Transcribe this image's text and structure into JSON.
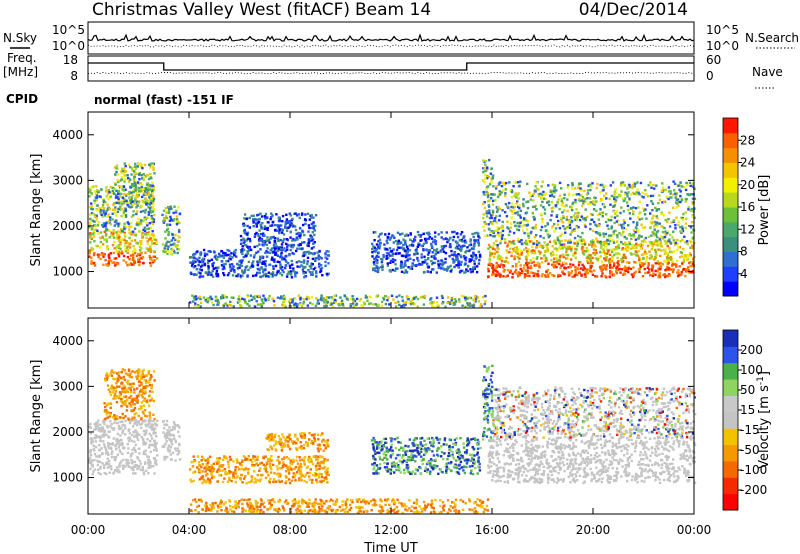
{
  "header": {
    "radar": "Christmas Valley West (fitACF)",
    "beam": "Beam 14",
    "date": "04/Dec/2014"
  },
  "strips": {
    "nsky_label": "N.Sky",
    "nsky_ticks": [
      "10^5",
      "10^0"
    ],
    "nsearch_label": "N.Search",
    "nsearch_ticks": [
      "10^5",
      "10^0"
    ],
    "freq_label": "Freq.",
    "freq_unit": "[MHz]",
    "freq_ticks": [
      "18",
      "8"
    ],
    "nave_label": "Nave",
    "nave_ticks": [
      "60",
      "0"
    ],
    "cpid_label": "CPID",
    "cpid_text": "normal (fast) -151 IF"
  },
  "colors": {
    "power_scale": [
      "#0000ff",
      "#1f3fff",
      "#2e6fcf",
      "#3a8f7f",
      "#4aa86a",
      "#6cc03a",
      "#b8d820",
      "#f0f000",
      "#f4c400",
      "#f79000",
      "#f86000",
      "#ff1800"
    ],
    "velocity_scale": [
      "#1a2fb8",
      "#2d54e8",
      "#4ab04a",
      "#8fd460",
      "#c8c8c8",
      "#c4c4c4",
      "#f2c200",
      "#f49a00",
      "#f56a00",
      "#f52a00",
      "#ff0000"
    ],
    "ground_scatter": "#c4c4c4"
  },
  "chart_data": [
    {
      "type": "heatmap",
      "name": "power",
      "ylabel": "Slant Range [km]",
      "yticks": [
        "4000",
        "3000",
        "2000",
        "1000"
      ],
      "ylim": [
        200,
        4500
      ],
      "xlim": [
        0,
        24
      ],
      "colorbar": {
        "label": "Power [dB]",
        "ticks": [
          "28",
          "24",
          "20",
          "16",
          "12",
          "8",
          "4"
        ],
        "range": [
          0,
          32
        ]
      },
      "features": [
        {
          "t_start": 0.0,
          "t_end": 2.7,
          "range_start": 1150,
          "range_end": 1900,
          "level": "high"
        },
        {
          "t_start": 0.0,
          "t_end": 2.6,
          "range_start": 1900,
          "range_end": 2900,
          "level": "mid"
        },
        {
          "t_start": 1.0,
          "t_end": 2.6,
          "range_start": 2500,
          "range_end": 3400,
          "level": "mid"
        },
        {
          "t_start": 2.9,
          "t_end": 3.6,
          "range_start": 1400,
          "range_end": 2500,
          "level": "mid"
        },
        {
          "t_start": 4.0,
          "t_end": 9.5,
          "range_start": 900,
          "range_end": 1500,
          "level": "low"
        },
        {
          "t_start": 6.0,
          "t_end": 9.0,
          "range_start": 1500,
          "range_end": 2300,
          "level": "low"
        },
        {
          "t_start": 4.0,
          "t_end": 15.8,
          "range_start": 250,
          "range_end": 500,
          "level": "mid"
        },
        {
          "t_start": 11.2,
          "t_end": 15.5,
          "range_start": 1000,
          "range_end": 1900,
          "level": "low"
        },
        {
          "t_start": 15.6,
          "t_end": 16.0,
          "range_start": 1800,
          "range_end": 3500,
          "level": "mid"
        },
        {
          "t_start": 15.8,
          "t_end": 24.0,
          "range_start": 900,
          "range_end": 1700,
          "level": "high"
        },
        {
          "t_start": 16.0,
          "t_end": 24.0,
          "range_start": 1600,
          "range_end": 3000,
          "level": "mid"
        }
      ]
    },
    {
      "type": "heatmap",
      "name": "velocity",
      "ylabel": "Slant Range [km]",
      "yticks": [
        "4000",
        "3000",
        "2000",
        "1000"
      ],
      "ylim": [
        200,
        4500
      ],
      "xlim": [
        0,
        24
      ],
      "xlabel": "Time UT",
      "xticks": [
        "00:00",
        "04:00",
        "08:00",
        "12:00",
        "16:00",
        "20:00",
        "00:00"
      ],
      "colorbar": {
        "label": "Velocity [m s-1]",
        "label_main": "Velocity [m s",
        "label_sup": "-1",
        "label_end": "]",
        "ticks": [
          "200",
          "100",
          "50",
          "15",
          "-15",
          "-50",
          "-100",
          "-200"
        ],
        "range": [
          -250,
          250
        ]
      },
      "features": [
        {
          "t_start": 0.0,
          "t_end": 2.7,
          "range_start": 1100,
          "range_end": 2300,
          "kind": "ground"
        },
        {
          "t_start": 0.6,
          "t_end": 2.6,
          "range_start": 2300,
          "range_end": 3400,
          "kind": "negative"
        },
        {
          "t_start": 2.9,
          "t_end": 3.6,
          "range_start": 1400,
          "range_end": 2300,
          "kind": "ground"
        },
        {
          "t_start": 4.0,
          "t_end": 9.5,
          "range_start": 900,
          "range_end": 1500,
          "kind": "negative"
        },
        {
          "t_start": 7.0,
          "t_end": 9.5,
          "range_start": 1600,
          "range_end": 2000,
          "kind": "negative"
        },
        {
          "t_start": 4.0,
          "t_end": 15.8,
          "range_start": 250,
          "range_end": 550,
          "kind": "negative"
        },
        {
          "t_start": 11.2,
          "t_end": 15.5,
          "range_start": 1100,
          "range_end": 1900,
          "kind": "positive"
        },
        {
          "t_start": 15.6,
          "t_end": 16.0,
          "range_start": 1800,
          "range_end": 3500,
          "kind": "positive"
        },
        {
          "t_start": 15.8,
          "t_end": 24.0,
          "range_start": 900,
          "range_end": 1900,
          "kind": "ground"
        },
        {
          "t_start": 16.0,
          "t_end": 24.0,
          "range_start": 1900,
          "range_end": 3000,
          "kind": "mixed"
        }
      ]
    }
  ]
}
